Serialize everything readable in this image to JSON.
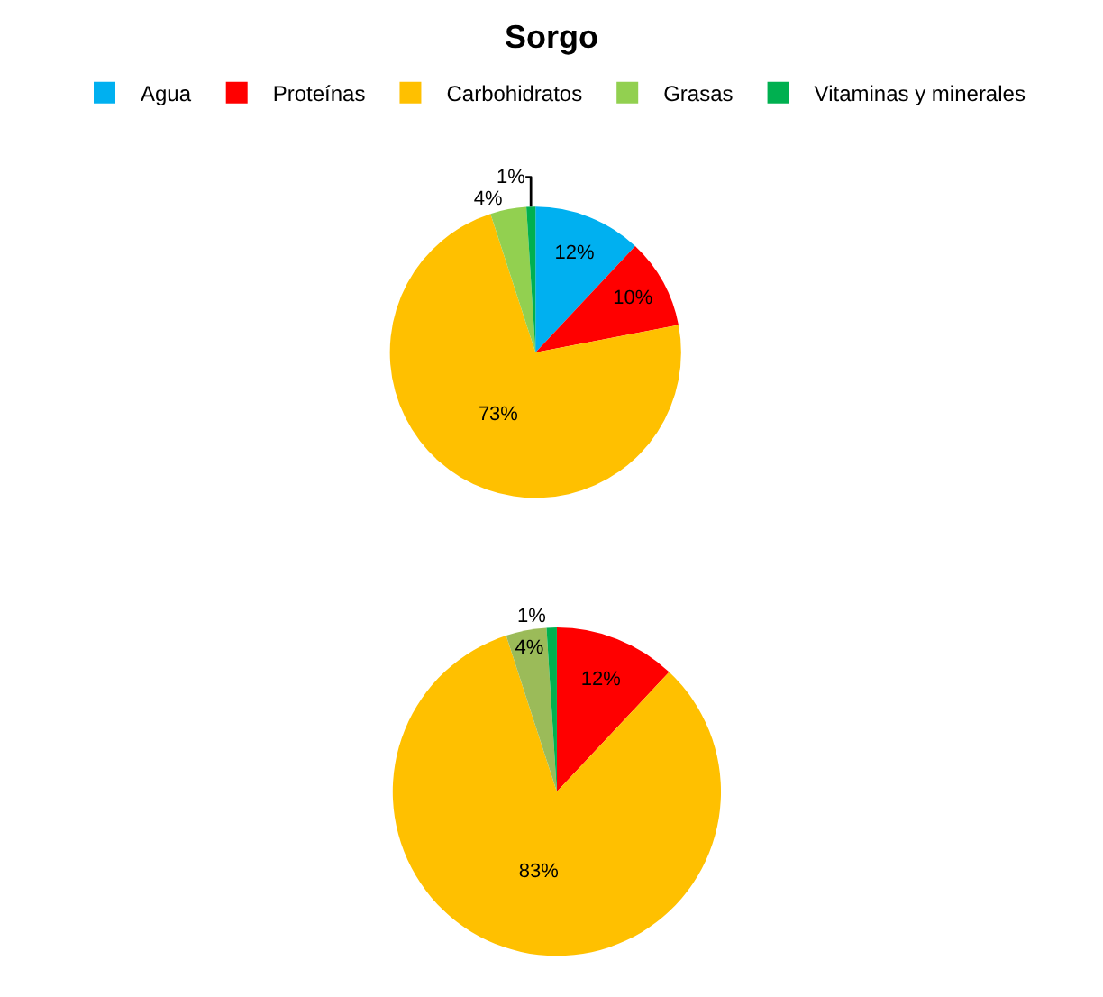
{
  "chart_data": [
    {
      "type": "pie",
      "title": "Sorgo",
      "legend": "top",
      "categories": [
        "Agua",
        "Proteínas",
        "Carbohidratos",
        "Grasas",
        "Vitaminas y minerales"
      ],
      "values": [
        12,
        10,
        73,
        4,
        1
      ],
      "colors": [
        "#00b0f0",
        "#ff0000",
        "#ffc000",
        "#92d050",
        "#00b050"
      ],
      "value_labels": [
        "12%",
        "10%",
        "73%",
        "4%",
        "1%"
      ]
    },
    {
      "type": "pie",
      "categories": [
        null,
        null,
        null,
        null
      ],
      "values": [
        12,
        83,
        4,
        1
      ],
      "colors": [
        "#ff0000",
        "#ffc000",
        "#9bbb59",
        "#00b050"
      ],
      "value_labels": [
        "12%",
        "83%",
        "4%",
        "1%"
      ]
    }
  ]
}
